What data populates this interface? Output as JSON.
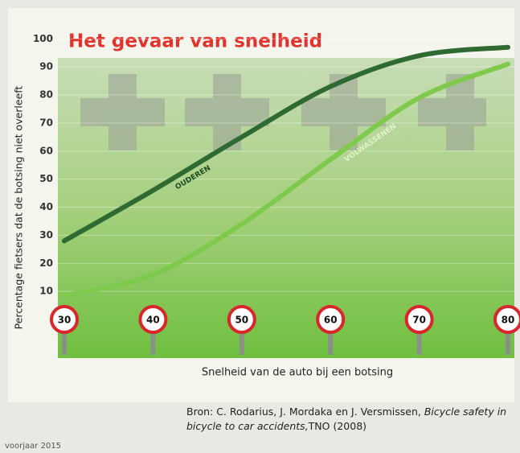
{
  "chart_data": {
    "type": "line",
    "title": "Het gevaar van snelheid",
    "y_label": "Percentage fietsers dat de botsing niet overleeft",
    "x_label": "Snelheid van de auto bij een botsing",
    "x": [
      30,
      40,
      50,
      60,
      70,
      80
    ],
    "xlim": [
      30,
      80
    ],
    "xticks": [
      30,
      40,
      50,
      60,
      70,
      80
    ],
    "ylim": [
      0,
      100
    ],
    "yticks": [
      10,
      20,
      30,
      40,
      50,
      60,
      70,
      80,
      90,
      100
    ],
    "grid": true,
    "series": [
      {
        "name": "OUDEREN",
        "color": "#2f6a32",
        "values": [
          28,
          46,
          65,
          83,
          94,
          97
        ]
      },
      {
        "name": "VOLWASSENEN",
        "color": "#7fca4c",
        "values": [
          8.5,
          16,
          34,
          57,
          79,
          91
        ]
      }
    ],
    "source": [
      "Bron: C. Rodarius, J. Mordaka en J. Versmissen, ",
      "Bicycle safety in bicycle to car accidents,",
      "TNO (2008)"
    ],
    "footer": "voorjaar 2015"
  }
}
